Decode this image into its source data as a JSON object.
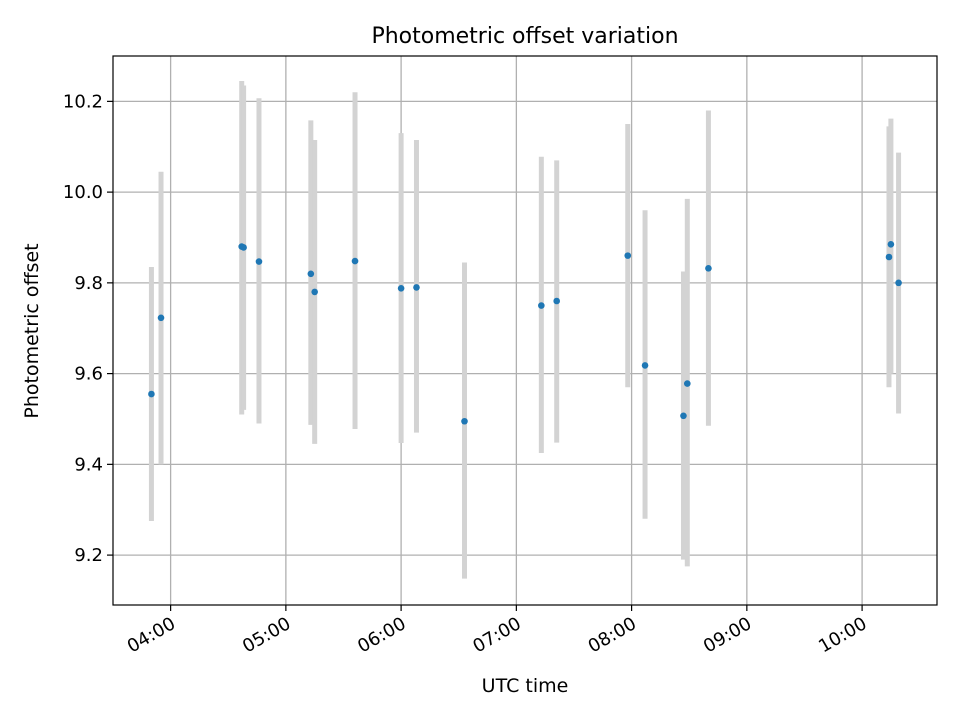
{
  "chart_data": {
    "type": "scatter",
    "title": "Photometric offset variation",
    "xlabel": "UTC time",
    "ylabel": "Photometric offset",
    "xlim": [
      "03:30",
      "10:39"
    ],
    "ylim": [
      9.09,
      10.3
    ],
    "x_ticks": [
      "04:00",
      "05:00",
      "06:00",
      "07:00",
      "08:00",
      "09:00",
      "10:00"
    ],
    "y_ticks": [
      9.2,
      9.4,
      9.6,
      9.8,
      10.0,
      10.2
    ],
    "grid": true,
    "colors": {
      "point": "#1f77b4",
      "error_bar": "#d3d3d3",
      "grid": "#b0b0b0"
    },
    "points": [
      {
        "x": "03:50",
        "y": 9.555,
        "y_low": 9.275,
        "y_high": 9.835
      },
      {
        "x": "03:55",
        "y": 9.723,
        "y_low": 9.4,
        "y_high": 10.045
      },
      {
        "x": "04:37",
        "y": 9.88,
        "y_low": 9.51,
        "y_high": 10.245
      },
      {
        "x": "04:38",
        "y": 9.878,
        "y_low": 9.52,
        "y_high": 10.235
      },
      {
        "x": "04:46",
        "y": 9.847,
        "y_low": 9.49,
        "y_high": 10.207
      },
      {
        "x": "05:13",
        "y": 9.82,
        "y_low": 9.487,
        "y_high": 10.158
      },
      {
        "x": "05:15",
        "y": 9.78,
        "y_low": 9.445,
        "y_high": 10.115
      },
      {
        "x": "05:36",
        "y": 9.848,
        "y_low": 9.478,
        "y_high": 10.22
      },
      {
        "x": "06:00",
        "y": 9.788,
        "y_low": 9.447,
        "y_high": 10.13
      },
      {
        "x": "06:08",
        "y": 9.79,
        "y_low": 9.47,
        "y_high": 10.115
      },
      {
        "x": "06:33",
        "y": 9.495,
        "y_low": 9.148,
        "y_high": 9.845
      },
      {
        "x": "07:13",
        "y": 9.75,
        "y_low": 9.425,
        "y_high": 10.078
      },
      {
        "x": "07:21",
        "y": 9.76,
        "y_low": 9.448,
        "y_high": 10.07
      },
      {
        "x": "07:58",
        "y": 9.86,
        "y_low": 9.57,
        "y_high": 10.15
      },
      {
        "x": "08:07",
        "y": 9.618,
        "y_low": 9.28,
        "y_high": 9.96
      },
      {
        "x": "08:27",
        "y": 9.507,
        "y_low": 9.19,
        "y_high": 9.825
      },
      {
        "x": "08:29",
        "y": 9.578,
        "y_low": 9.175,
        "y_high": 9.985
      },
      {
        "x": "08:40",
        "y": 9.832,
        "y_low": 9.485,
        "y_high": 10.18
      },
      {
        "x": "10:14",
        "y": 9.857,
        "y_low": 9.57,
        "y_high": 10.145
      },
      {
        "x": "10:15",
        "y": 9.885,
        "y_low": 9.6,
        "y_high": 10.162
      },
      {
        "x": "10:19",
        "y": 9.8,
        "y_low": 9.512,
        "y_high": 10.087
      }
    ]
  }
}
